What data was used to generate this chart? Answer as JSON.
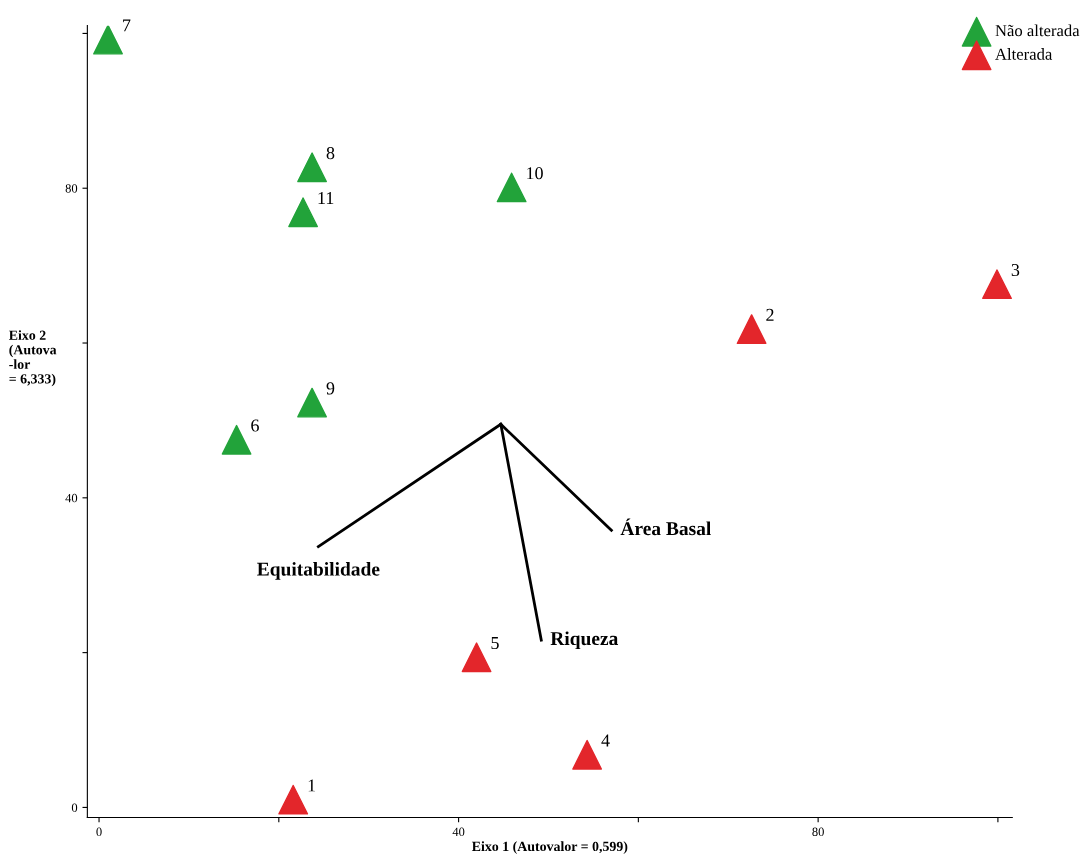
{
  "chart_data": {
    "type": "scatter",
    "xlabel": "Eixo 1 (Autovalor = 0,599)",
    "ylabel": "Eixo 2\n(Autova\n-lor\n= 6,333)",
    "marker": "triangle",
    "legend": "top right",
    "grid": false,
    "xlim": [
      -1.3,
      101.6
    ],
    "ylim": [
      -1.3,
      101
    ],
    "xticks": [
      0,
      {
        "value": 20,
        "label": null
      },
      40,
      {
        "value": 60,
        "label": null
      },
      80,
      {
        "value": 100,
        "label": null
      }
    ],
    "yticks": [
      0,
      {
        "value": 20,
        "label": null
      },
      40,
      {
        "value": 60,
        "label": null
      },
      80,
      {
        "value": 100,
        "label": null
      }
    ],
    "series": [
      {
        "name": "Não alterada",
        "color": "#22a33a",
        "x": [
          1,
          23.7,
          22.7,
          45.9,
          23.7,
          15.3
        ],
        "values": [
          99.2,
          82.7,
          76.9,
          80.1,
          52.3,
          47.5
        ]
      },
      {
        "name": "Alterada",
        "color": "#e3262b",
        "x": [
          72.6,
          99.9,
          42,
          54.3,
          21.6
        ],
        "values": [
          61.8,
          67.6,
          19.4,
          6.8,
          1.0
        ]
      },
      {
        "name": "Equitabilidade",
        "color": "#000000",
        "type": "line",
        "marker": "none",
        "x": [
          44.7,
          24.4
        ],
        "values": [
          49.5,
          33.7
        ]
      },
      {
        "name": "Riqueza",
        "color": "#000000",
        "type": "line",
        "marker": "none",
        "x": [
          44.7,
          49.2
        ],
        "values": [
          49.5,
          21.6
        ]
      },
      {
        "name": "Área Basal",
        "color": "#000000",
        "type": "line",
        "marker": "none",
        "x": [
          44.7,
          57.0
        ],
        "values": [
          49.5,
          35.8
        ]
      }
    ],
    "annotations": [
      {
        "text": "7",
        "x": 1,
        "y": 99.2
      },
      {
        "text": "8",
        "x": 23.7,
        "y": 82.7
      },
      {
        "text": "11",
        "x": 22.7,
        "y": 76.9
      },
      {
        "text": "10",
        "x": 45.9,
        "y": 80.1
      },
      {
        "text": "9",
        "x": 23.7,
        "y": 52.3
      },
      {
        "text": "6",
        "x": 15.3,
        "y": 47.5
      },
      {
        "text": "2",
        "x": 72.6,
        "y": 61.8
      },
      {
        "text": "3",
        "x": 99.9,
        "y": 67.6
      },
      {
        "text": "5",
        "x": 42,
        "y": 19.4
      },
      {
        "text": "4",
        "x": 54.3,
        "y": 6.8
      },
      {
        "text": "1",
        "x": 21.6,
        "y": 1.0
      }
    ]
  }
}
